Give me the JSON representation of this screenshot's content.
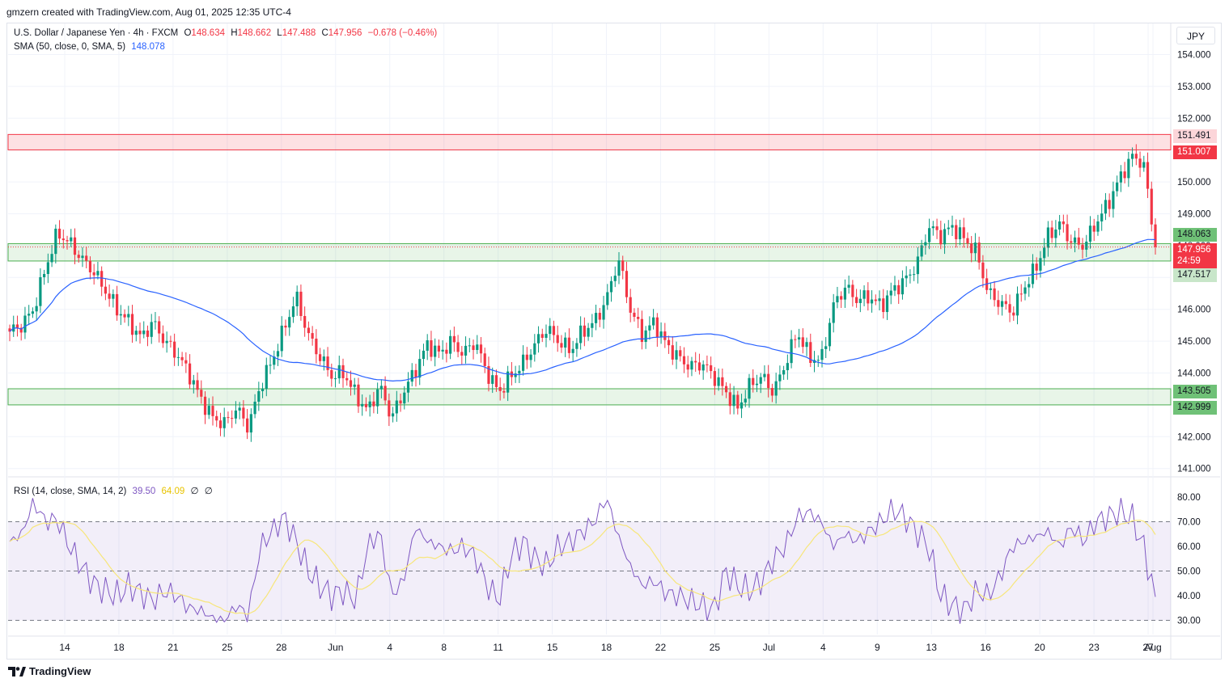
{
  "header": {
    "text": "gmzern created with TradingView.com, Aug 01, 2025 12:35 UTC-4"
  },
  "legend": {
    "symbol": "U.S. Dollar / Japanese Yen · 4h · FXCM",
    "o_label": "O",
    "o": "148.634",
    "h_label": "H",
    "h": "148.662",
    "l_label": "L",
    "l": "147.488",
    "c_label": "C",
    "c": "147.956",
    "change": "−0.678 (−0.46%)",
    "sma_label": "SMA (50, close, 0, SMA, 5)",
    "sma_value": "148.078",
    "rsi_label": "RSI (14, close, SMA, 14, 2)",
    "rsi_value": "39.50",
    "rsi_ma_value": "64.09",
    "rsi_extra1": "∅",
    "rsi_extra2": "∅"
  },
  "currency": "JPY",
  "badges": {
    "r_top": "151.491",
    "r_bot": "151.007",
    "s1_top": "148.063",
    "price": "147.956",
    "countdown": "24:59",
    "s1_bot": "147.517",
    "s2_top": "143.505",
    "s2_bot": "142.999"
  },
  "brand": "TradingView",
  "colors": {
    "up": "#089981",
    "down": "#f23645",
    "sma": "#2962ff",
    "rsi": "#7e57c2",
    "rsi_ma": "#f7e67a",
    "resistance": "#f23645",
    "support": "#4caf50"
  },
  "chart_data": {
    "type": "candlestick",
    "title": "U.S. Dollar / Japanese Yen · 4h · FXCM",
    "ylim": [
      140.7,
      155.0
    ],
    "y_ticks": [
      "154.000",
      "153.000",
      "152.000",
      "151.000",
      "150.000",
      "149.000",
      "148.000",
      "147.000",
      "146.000",
      "145.000",
      "144.000",
      "143.000",
      "142.000",
      "141.000"
    ],
    "x_ticks": [
      "14",
      "18",
      "21",
      "25",
      "28",
      "Jun",
      "4",
      "8",
      "11",
      "15",
      "18",
      "22",
      "25",
      "Jul",
      "4",
      "9",
      "13",
      "16",
      "20",
      "23",
      "27",
      "Aug"
    ],
    "zones": [
      {
        "name": "resistance",
        "from": 151.007,
        "to": 151.491
      },
      {
        "name": "support-1",
        "from": 147.517,
        "to": 148.063
      },
      {
        "name": "support-2",
        "from": 142.999,
        "to": 143.505
      }
    ],
    "close_path": [
      145.3,
      145.5,
      146.0,
      147.3,
      148.4,
      148.1,
      147.6,
      147.2,
      146.6,
      146.0,
      145.6,
      145.1,
      145.6,
      145.0,
      144.6,
      144.0,
      143.2,
      142.6,
      142.4,
      142.9,
      142.3,
      143.6,
      144.4,
      145.4,
      146.4,
      145.2,
      144.5,
      143.9,
      144.0,
      143.3,
      142.8,
      143.6,
      142.6,
      143.4,
      144.1,
      144.9,
      144.6,
      145.0,
      144.6,
      145.0,
      144.0,
      143.4,
      143.9,
      144.3,
      144.9,
      145.4,
      145.0,
      144.7,
      145.3,
      145.6,
      146.3,
      147.6,
      146.0,
      145.2,
      145.6,
      144.9,
      144.5,
      144.2,
      144.3,
      143.9,
      143.4,
      142.9,
      143.6,
      143.9,
      143.4,
      144.3,
      145.3,
      144.5,
      144.4,
      146.1,
      146.7,
      146.3,
      146.4,
      146.1,
      146.6,
      146.9,
      147.4,
      148.6,
      148.3,
      148.6,
      148.2,
      147.8,
      146.5,
      146.2,
      145.9,
      146.7,
      147.3,
      148.3,
      148.7,
      148.1,
      148.0,
      148.7,
      149.3,
      150.1,
      150.8,
      150.6,
      147.956
    ],
    "sma": {
      "name": "SMA (50, close, 0, SMA, 5)",
      "last": 148.078
    },
    "rsi": {
      "name": "RSI (14, close, SMA, 14, 2)",
      "ylim": [
        25,
        85
      ],
      "levels": [
        70,
        50,
        30
      ],
      "y_ticks": [
        "80.00",
        "70.00",
        "60.00",
        "50.00",
        "40.00",
        "30.00"
      ],
      "values": [
        62,
        65,
        78,
        70,
        71,
        60,
        52,
        45,
        42,
        40,
        44,
        41,
        38,
        42,
        40,
        35,
        34,
        31,
        30,
        36,
        32,
        60,
        66,
        72,
        62,
        50,
        44,
        40,
        42,
        38,
        60,
        66,
        40,
        46,
        68,
        62,
        60,
        58,
        60,
        56,
        44,
        38,
        56,
        62,
        55,
        52,
        60,
        62,
        66,
        70,
        80,
        64,
        52,
        44,
        46,
        41,
        40,
        38,
        36,
        34,
        50,
        44,
        42,
        46,
        55,
        60,
        72,
        74,
        70,
        60,
        65,
        62,
        66,
        70,
        75,
        72,
        66,
        60,
        40,
        36,
        34,
        42,
        40,
        48,
        60,
        62,
        64,
        66,
        60,
        68,
        62,
        70,
        72,
        74,
        72,
        60,
        39.5
      ],
      "ma_last": 64.09
    }
  }
}
